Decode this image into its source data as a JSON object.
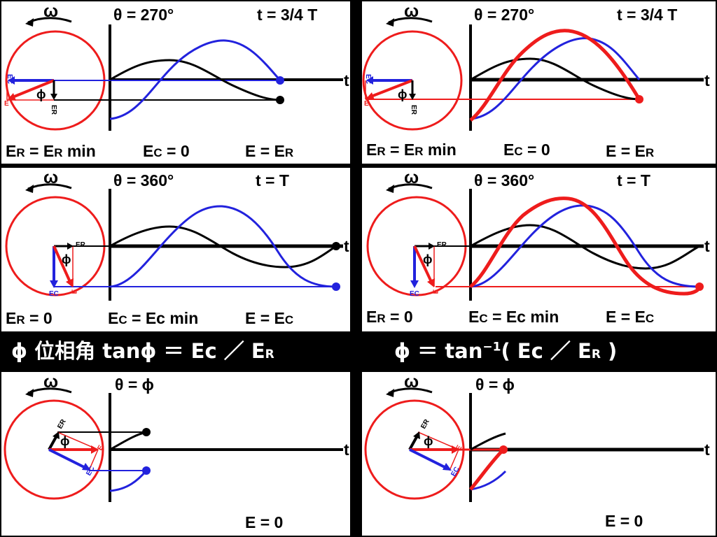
{
  "panels": [
    {
      "omega": "ω",
      "theta": "θ = 270°",
      "time": "t = 3/4 T",
      "t_axis": "t",
      "vec_ec": "EC",
      "vec_e": "E",
      "vec_er": "ER",
      "phi": "ϕ",
      "bottom": {
        "a_main": "E",
        "a_sub": "R",
        "a_rest": " = E",
        "a_sub2": "R",
        "a_tail": " min",
        "b_main": "E",
        "b_sub": "C",
        "b_rest": " = 0",
        "c_text": "E = E",
        "c_sub": "R"
      }
    },
    {
      "omega": "ω",
      "theta": "θ = 270°",
      "time": "t = 3/4 T",
      "t_axis": "t",
      "vec_ec": "EC",
      "vec_e": "E",
      "vec_er": "ER",
      "phi": "ϕ",
      "bottom": {
        "a_main": "E",
        "a_sub": "R",
        "a_rest": " = E",
        "a_sub2": "R",
        "a_tail": " min",
        "b_main": "E",
        "b_sub": "C",
        "b_rest": " = 0",
        "c_text": "E = E",
        "c_sub": "R"
      }
    },
    {
      "omega": "ω",
      "theta": "θ = 360°",
      "time": "t =       T",
      "t_axis": "t",
      "vec_ec": "EC",
      "vec_e": "E",
      "vec_er": "ER",
      "phi": "ϕ",
      "bottom": {
        "a_main": "E",
        "a_sub": "R",
        "a_rest": " = 0",
        "b_main": "E",
        "b_sub": "C",
        "b_rest": " = Ec min",
        "c_text": "E = E",
        "c_sub": "C"
      }
    },
    {
      "omega": "ω",
      "theta": "θ = 360°",
      "time": "t =       T",
      "t_axis": "t",
      "vec_ec": "EC",
      "vec_e": "E",
      "vec_er": "ER",
      "phi": "ϕ",
      "bottom": {
        "a_main": "E",
        "a_sub": "R",
        "a_rest": " = 0",
        "b_main": "E",
        "b_sub": "C",
        "b_rest": " = Ec min",
        "c_text": "E = E",
        "c_sub": "C"
      }
    },
    {
      "omega": "ω",
      "theta": "θ = ϕ",
      "t_axis": "t",
      "vec_ec": "EC",
      "vec_e": "E",
      "vec_er": "ER",
      "phi": "ϕ",
      "bottom_e": "E = 0"
    },
    {
      "omega": "ω",
      "theta": "θ = ϕ",
      "t_axis": "t",
      "vec_ec": "EC",
      "vec_e": "E",
      "vec_er": "ER",
      "phi": "ϕ",
      "bottom_e": "E = 0"
    }
  ],
  "phase_bar": {
    "left_text": "ϕ  位相角    tanϕ ＝ Ec ／ E",
    "left_sub": "R",
    "right_text": "ϕ ＝ tan",
    "right_sup": "−1",
    "right_rest": "( Ec ／ E",
    "right_sub": "R",
    "right_close": " )"
  },
  "colors": {
    "red": "#ee1c1c",
    "blue": "#2222dd",
    "black": "#000000"
  }
}
